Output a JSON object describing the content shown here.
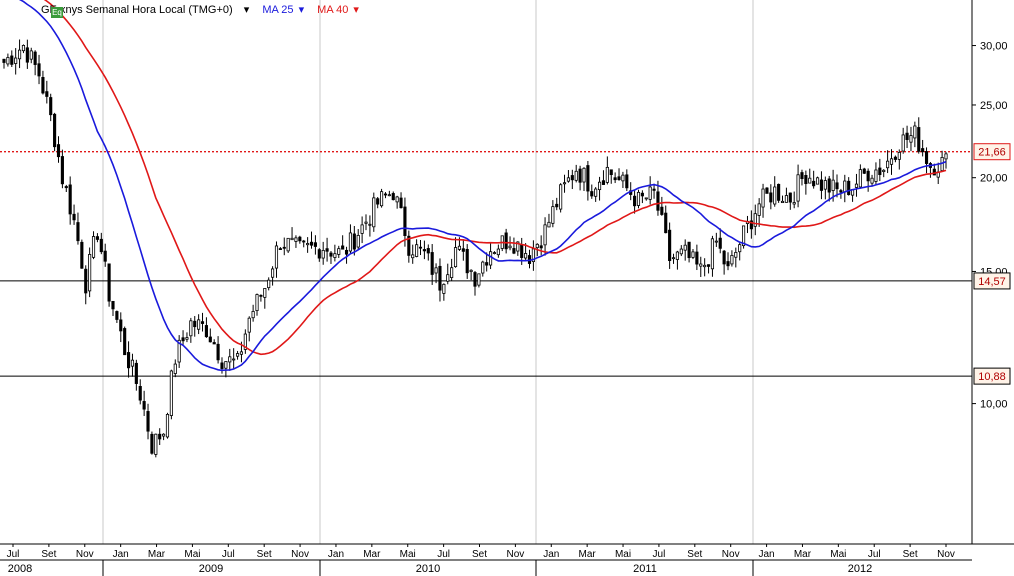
{
  "header": {
    "badge": "Eq",
    "instrument": "GE:xnys Semanal Hora Local (TMG+0)",
    "ma25_label": "MA 25",
    "ma40_label": "MA 40"
  },
  "colors": {
    "ma25": "#1a1adc",
    "ma40": "#e01818",
    "candle_up": "#ffffff",
    "candle_down": "#000000",
    "badge_bg": "#3a9a3a",
    "label_box": "#fff3e8"
  },
  "chart_data": {
    "type": "line",
    "subtype": "candlestick",
    "scale": "log",
    "ylim": [
      6.5,
      34.5
    ],
    "y_ticks": [
      "10,00",
      "15,00",
      "20,00",
      "25,00",
      "30,00"
    ],
    "x_month_labels": [
      "Jul",
      "Set",
      "Nov",
      "Jan",
      "Mar",
      "Mai",
      "Jul",
      "Set",
      "Nov",
      "Jan",
      "Mar",
      "Mai",
      "Jul",
      "Set",
      "Nov",
      "Jan",
      "Mar",
      "Mai",
      "Jul",
      "Set",
      "Nov",
      "Jan",
      "Mar",
      "Mai",
      "Jul",
      "Set",
      "Nov"
    ],
    "x_year_labels": [
      "2008",
      "2009",
      "2010",
      "2011",
      "2012"
    ],
    "horizontal_lines": [
      {
        "value": 21.66,
        "label": "21,66",
        "style": "dotted",
        "color": "#e01818"
      },
      {
        "value": 14.57,
        "label": "14,57",
        "style": "solid",
        "color": "#000000"
      },
      {
        "value": 10.88,
        "label": "10,88",
        "style": "solid",
        "color": "#000000"
      }
    ],
    "price_anchors": [
      [
        0,
        28.5
      ],
      [
        5,
        30.0
      ],
      [
        9,
        27.5
      ],
      [
        12,
        24.0
      ],
      [
        15,
        20.0
      ],
      [
        18,
        17.5
      ],
      [
        21,
        14.5
      ],
      [
        24,
        17.0
      ],
      [
        27,
        14.0
      ],
      [
        31,
        11.8
      ],
      [
        35,
        10.3
      ],
      [
        38,
        8.8
      ],
      [
        41,
        9.2
      ],
      [
        44,
        11.5
      ],
      [
        48,
        12.8
      ],
      [
        52,
        12.6
      ],
      [
        56,
        11.5
      ],
      [
        60,
        11.3
      ],
      [
        63,
        13.0
      ],
      [
        67,
        14.3
      ],
      [
        71,
        16.5
      ],
      [
        76,
        16.0
      ],
      [
        82,
        16.2
      ],
      [
        87,
        15.8
      ],
      [
        92,
        17.2
      ],
      [
        96,
        18.5
      ],
      [
        100,
        19.2
      ],
      [
        104,
        16.3
      ],
      [
        108,
        15.8
      ],
      [
        112,
        14.5
      ],
      [
        116,
        16.1
      ],
      [
        121,
        14.8
      ],
      [
        125,
        16.1
      ],
      [
        130,
        16.6
      ],
      [
        135,
        15.8
      ],
      [
        139,
        17.0
      ],
      [
        143,
        19.0
      ],
      [
        147,
        20.6
      ],
      [
        151,
        19.5
      ],
      [
        155,
        20.5
      ],
      [
        159,
        19.6
      ],
      [
        163,
        18.6
      ],
      [
        167,
        19.0
      ],
      [
        171,
        15.6
      ],
      [
        175,
        15.8
      ],
      [
        179,
        15.0
      ],
      [
        183,
        16.4
      ],
      [
        186,
        15.0
      ],
      [
        190,
        16.8
      ],
      [
        194,
        18.5
      ],
      [
        198,
        19.2
      ],
      [
        202,
        18.8
      ],
      [
        206,
        20.3
      ],
      [
        210,
        19.6
      ],
      [
        214,
        19.2
      ],
      [
        218,
        19.5
      ],
      [
        222,
        20.4
      ],
      [
        226,
        20.6
      ],
      [
        230,
        22.3
      ],
      [
        234,
        22.8
      ],
      [
        238,
        20.8
      ],
      [
        242,
        21.0
      ]
    ]
  }
}
